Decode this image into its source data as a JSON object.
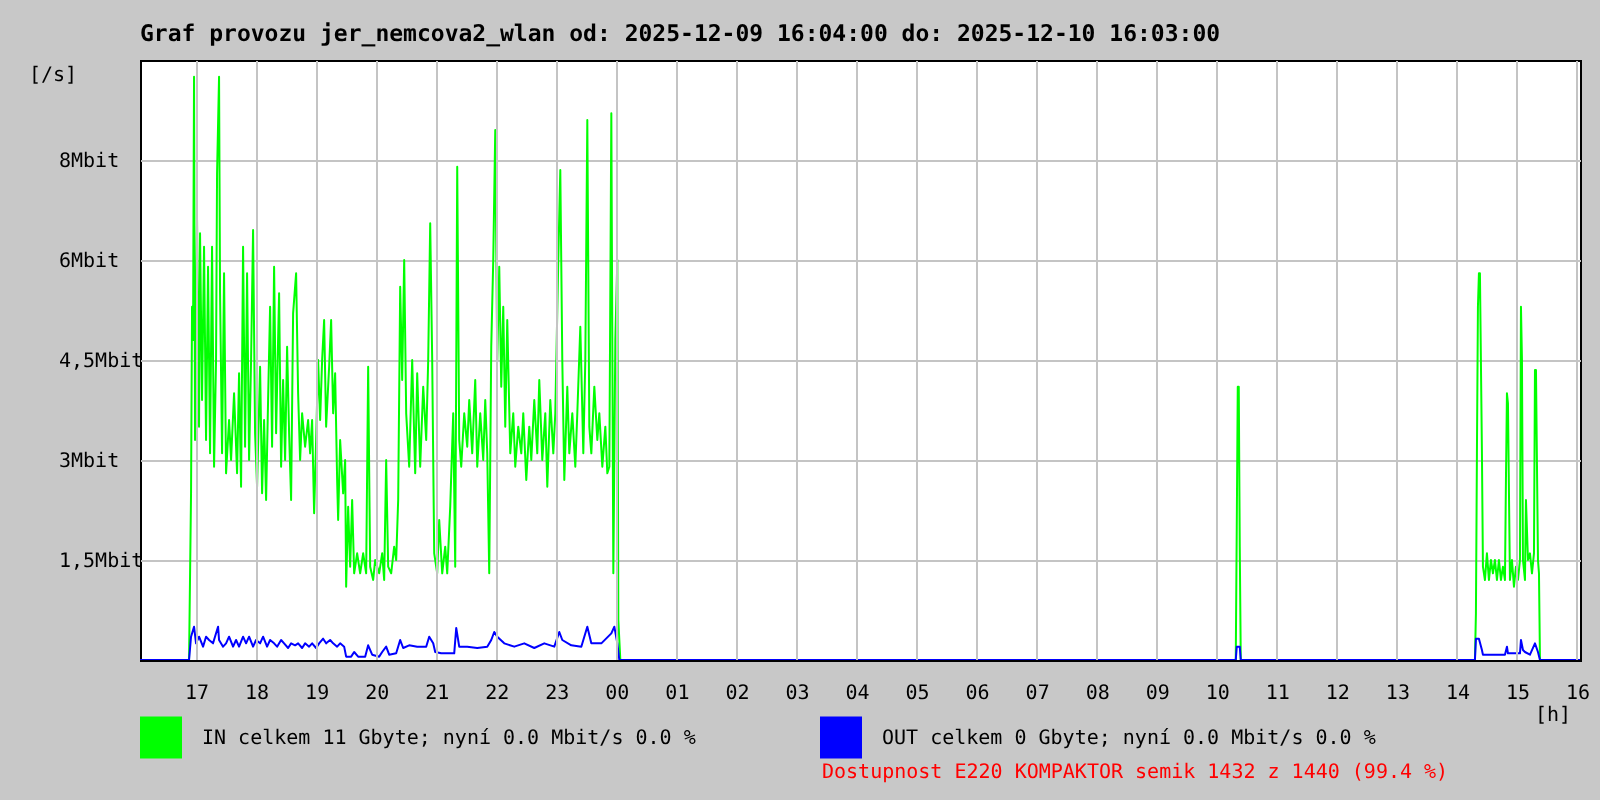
{
  "chart_data": {
    "type": "line",
    "title": "Graf provozu jer_nemcova2_wlan od: 2025-12-09 16:04:00 do: 2025-12-10 16:03:00",
    "xlabel": "[h]",
    "ylabel": "[/s]",
    "xlim": [
      "2025-12-09T16:04",
      "2025-12-10T16:03"
    ],
    "ylim": [
      0,
      9
    ],
    "xticks": [
      {
        "value": "2025-12-09T17:00",
        "label": "17"
      },
      {
        "value": "2025-12-09T18:00",
        "label": "18"
      },
      {
        "value": "2025-12-09T19:00",
        "label": "19"
      },
      {
        "value": "2025-12-09T20:00",
        "label": "20"
      },
      {
        "value": "2025-12-09T21:00",
        "label": "21"
      },
      {
        "value": "2025-12-09T22:00",
        "label": "22"
      },
      {
        "value": "2025-12-09T23:00",
        "label": "23"
      },
      {
        "value": "2025-12-10T00:00",
        "label": "00"
      },
      {
        "value": "2025-12-10T01:00",
        "label": "01"
      },
      {
        "value": "2025-12-10T02:00",
        "label": "02"
      },
      {
        "value": "2025-12-10T03:00",
        "label": "03"
      },
      {
        "value": "2025-12-10T04:00",
        "label": "04"
      },
      {
        "value": "2025-12-10T05:00",
        "label": "05"
      },
      {
        "value": "2025-12-10T06:00",
        "label": "06"
      },
      {
        "value": "2025-12-10T07:00",
        "label": "07"
      },
      {
        "value": "2025-12-10T08:00",
        "label": "08"
      },
      {
        "value": "2025-12-10T09:00",
        "label": "09"
      },
      {
        "value": "2025-12-10T10:00",
        "label": "10"
      },
      {
        "value": "2025-12-10T11:00",
        "label": "11"
      },
      {
        "value": "2025-12-10T12:00",
        "label": "12"
      },
      {
        "value": "2025-12-10T13:00",
        "label": "13"
      },
      {
        "value": "2025-12-10T14:00",
        "label": "14"
      },
      {
        "value": "2025-12-10T15:00",
        "label": "15"
      },
      {
        "value": "2025-12-10T16:00",
        "label": "16"
      }
    ],
    "yticks": [
      {
        "value": 1.5,
        "label": "1,5Mbit"
      },
      {
        "value": 3,
        "label": "3Mbit"
      },
      {
        "value": 4.5,
        "label": "4,5Mbit"
      },
      {
        "value": 6,
        "label": "6Mbit"
      },
      {
        "value": 7.5,
        "label": "8Mbit"
      }
    ],
    "grid": true,
    "legend": "bottom",
    "annotations": [
      "Dostupnost E220 KOMPAKTOR semik 1432 z 1440 (99.4 %)"
    ],
    "series": [
      {
        "name": "IN celkem 11 Gbyte; nyní 0.0 Mbit/s 0.0 %",
        "color": "#00ff00",
        "x": [
          "2025-12-09T16:04",
          "2025-12-09T16:53",
          "2025-12-09T16:55",
          "2025-12-09T16:56",
          "2025-12-09T16:57",
          "2025-12-09T16:58",
          "2025-12-09T16:59",
          "2025-12-09T17:01",
          "2025-12-09T17:03",
          "2025-12-09T17:04",
          "2025-12-09T17:06",
          "2025-12-09T17:08",
          "2025-12-09T17:10",
          "2025-12-09T17:12",
          "2025-12-09T17:14",
          "2025-12-09T17:16",
          "2025-12-09T17:18",
          "2025-12-09T17:20",
          "2025-12-09T17:21",
          "2025-12-09T17:23",
          "2025-12-09T17:24",
          "2025-12-09T17:26",
          "2025-12-09T17:28",
          "2025-12-09T17:30",
          "2025-12-09T17:33",
          "2025-12-09T17:35",
          "2025-12-09T17:38",
          "2025-12-09T17:41",
          "2025-12-09T17:43",
          "2025-12-09T17:45",
          "2025-12-09T17:47",
          "2025-12-09T17:49",
          "2025-12-09T17:51",
          "2025-12-09T17:53",
          "2025-12-09T17:55",
          "2025-12-09T17:57",
          "2025-12-09T17:59",
          "2025-12-09T18:01",
          "2025-12-09T18:04",
          "2025-12-09T18:06",
          "2025-12-09T18:08",
          "2025-12-09T18:10",
          "2025-12-09T18:12",
          "2025-12-09T18:14",
          "2025-12-09T18:16",
          "2025-12-09T18:18",
          "2025-12-09T18:20",
          "2025-12-09T18:23",
          "2025-12-09T18:25",
          "2025-12-09T18:27",
          "2025-12-09T18:29",
          "2025-12-09T18:31",
          "2025-12-09T18:33",
          "2025-12-09T18:35",
          "2025-12-09T18:37",
          "2025-12-09T18:40",
          "2025-12-09T18:42",
          "2025-12-09T18:44",
          "2025-12-09T18:46",
          "2025-12-09T18:49",
          "2025-12-09T18:52",
          "2025-12-09T18:54",
          "2025-12-09T18:56",
          "2025-12-09T18:58",
          "2025-12-09T19:00",
          "2025-12-09T19:02",
          "2025-12-09T19:04",
          "2025-12-09T19:06",
          "2025-12-09T19:08",
          "2025-12-09T19:10",
          "2025-12-09T19:13",
          "2025-12-09T19:15",
          "2025-12-09T19:17",
          "2025-12-09T19:19",
          "2025-12-09T19:21",
          "2025-12-09T19:22",
          "2025-12-09T19:24",
          "2025-12-09T19:27",
          "2025-12-09T19:29",
          "2025-12-09T19:30",
          "2025-12-09T19:32",
          "2025-12-09T19:34",
          "2025-12-09T19:36",
          "2025-12-09T19:38",
          "2025-12-09T19:41",
          "2025-12-09T19:44",
          "2025-12-09T19:47",
          "2025-12-09T19:50",
          "2025-12-09T19:52",
          "2025-12-09T19:54",
          "2025-12-09T19:57",
          "2025-12-09T19:59",
          "2025-12-09T20:03",
          "2025-12-09T20:06",
          "2025-12-09T20:08",
          "2025-12-09T20:10",
          "2025-12-09T20:12",
          "2025-12-09T20:15",
          "2025-12-09T20:18",
          "2025-12-09T20:20",
          "2025-12-09T20:22",
          "2025-12-09T20:24",
          "2025-12-09T20:26",
          "2025-12-09T20:28",
          "2025-12-09T20:30",
          "2025-12-09T20:33",
          "2025-12-09T20:36",
          "2025-12-09T20:39",
          "2025-12-09T20:41",
          "2025-12-09T20:44",
          "2025-12-09T20:47",
          "2025-12-09T20:50",
          "2025-12-09T20:52",
          "2025-12-09T20:54",
          "2025-12-09T20:56",
          "2025-12-09T20:58",
          "2025-12-09T21:01",
          "2025-12-09T21:03",
          "2025-12-09T21:06",
          "2025-12-09T21:09",
          "2025-12-09T21:11",
          "2025-12-09T21:14",
          "2025-12-09T21:17",
          "2025-12-09T21:19",
          "2025-12-09T21:21",
          "2025-12-09T21:23",
          "2025-12-09T21:25",
          "2025-12-09T21:28",
          "2025-12-09T21:31",
          "2025-12-09T21:33",
          "2025-12-09T21:36",
          "2025-12-09T21:39",
          "2025-12-09T21:41",
          "2025-12-09T21:44",
          "2025-12-09T21:47",
          "2025-12-09T21:49",
          "2025-12-09T21:51",
          "2025-12-09T21:53",
          "2025-12-09T21:55",
          "2025-12-09T21:57",
          "2025-12-09T21:59",
          "2025-12-09T22:01",
          "2025-12-09T22:03",
          "2025-12-09T22:05",
          "2025-12-09T22:07",
          "2025-12-09T22:09",
          "2025-12-09T22:11",
          "2025-12-09T22:14",
          "2025-12-09T22:17",
          "2025-12-09T22:19",
          "2025-12-09T22:22",
          "2025-12-09T22:25",
          "2025-12-09T22:27",
          "2025-12-09T22:30",
          "2025-12-09T22:33",
          "2025-12-09T22:35",
          "2025-12-09T22:38",
          "2025-12-09T22:41",
          "2025-12-09T22:43",
          "2025-12-09T22:46",
          "2025-12-09T22:49",
          "2025-12-09T22:51",
          "2025-12-09T22:54",
          "2025-12-09T22:57",
          "2025-12-09T22:59",
          "2025-12-09T23:02",
          "2025-12-09T23:04",
          "2025-12-09T23:06",
          "2025-12-09T23:08",
          "2025-12-09T23:11",
          "2025-12-09T23:13",
          "2025-12-09T23:16",
          "2025-12-09T23:19",
          "2025-12-09T23:21",
          "2025-12-09T23:24",
          "2025-12-09T23:27",
          "2025-12-09T23:29",
          "2025-12-09T23:31",
          "2025-12-09T23:33",
          "2025-12-09T23:35",
          "2025-12-09T23:38",
          "2025-12-09T23:41",
          "2025-12-09T23:43",
          "2025-12-09T23:46",
          "2025-12-09T23:49",
          "2025-12-09T23:51",
          "2025-12-09T23:53",
          "2025-12-09T23:55",
          "2025-12-09T23:57",
          "2025-12-09T23:59",
          "2025-12-10T00:01",
          "2025-12-10T00:02",
          "2025-12-10T00:04",
          "2025-12-10T10:19",
          "2025-12-10T10:20",
          "2025-12-10T10:21",
          "2025-12-10T10:22",
          "2025-12-10T10:23",
          "2025-12-10T10:24",
          "2025-12-10T14:18",
          "2025-12-10T14:19",
          "2025-12-10T14:20",
          "2025-12-10T14:21",
          "2025-12-10T14:22",
          "2025-12-10T14:23",
          "2025-12-10T14:25",
          "2025-12-10T14:26",
          "2025-12-10T14:28",
          "2025-12-10T14:30",
          "2025-12-10T14:32",
          "2025-12-10T14:34",
          "2025-12-10T14:36",
          "2025-12-10T14:38",
          "2025-12-10T14:40",
          "2025-12-10T14:42",
          "2025-12-10T14:44",
          "2025-12-10T14:46",
          "2025-12-10T14:48",
          "2025-12-10T14:49",
          "2025-12-10T14:50",
          "2025-12-10T14:51",
          "2025-12-10T14:53",
          "2025-12-10T14:55",
          "2025-12-10T14:57",
          "2025-12-10T14:59",
          "2025-12-10T15:01",
          "2025-12-10T15:03",
          "2025-12-10T15:04",
          "2025-12-10T15:05",
          "2025-12-10T15:06",
          "2025-12-10T15:08",
          "2025-12-10T15:09",
          "2025-12-10T15:11",
          "2025-12-10T15:13",
          "2025-12-10T15:15",
          "2025-12-10T15:17",
          "2025-12-10T15:18",
          "2025-12-10T15:19",
          "2025-12-10T15:21",
          "2025-12-10T15:22",
          "2025-12-10T15:23",
          "2025-12-10T16:03"
        ],
        "values": [
          0,
          0,
          2.5,
          5.3,
          4.8,
          8.75,
          3.3,
          6.6,
          3.5,
          6.4,
          3.9,
          6.2,
          3.3,
          5.9,
          3.1,
          6.2,
          2.9,
          4.5,
          7.3,
          8.75,
          5.5,
          3.1,
          5.8,
          2.8,
          3.6,
          3.0,
          4.0,
          2.8,
          4.3,
          2.6,
          6.2,
          3.2,
          5.8,
          3.0,
          4.5,
          6.45,
          3.4,
          2.6,
          4.4,
          2.5,
          3.6,
          2.4,
          3.9,
          5.3,
          3.2,
          5.9,
          3.4,
          5.5,
          2.9,
          4.2,
          3.0,
          4.7,
          3.4,
          2.4,
          5.2,
          5.8,
          4.0,
          3.0,
          3.7,
          3.2,
          3.6,
          3.1,
          3.6,
          2.2,
          3.3,
          4.5,
          3.6,
          4.5,
          5.1,
          3.5,
          4.4,
          5.1,
          3.7,
          4.3,
          2.7,
          2.1,
          3.3,
          2.5,
          3.0,
          1.1,
          2.3,
          1.4,
          2.4,
          1.3,
          1.6,
          1.3,
          1.6,
          1.3,
          4.4,
          1.4,
          1.2,
          1.5,
          1.3,
          1.6,
          1.2,
          3.0,
          1.4,
          1.3,
          1.7,
          1.5,
          2.4,
          5.6,
          4.2,
          6.0,
          3.7,
          2.9,
          4.5,
          2.8,
          4.3,
          2.9,
          4.1,
          3.3,
          4.5,
          6.55,
          4.5,
          1.6,
          1.3,
          2.1,
          1.3,
          1.7,
          1.3,
          2.3,
          3.7,
          1.4,
          7.4,
          3.3,
          2.9,
          3.7,
          3.2,
          3.9,
          3.1,
          4.2,
          2.9,
          3.7,
          3.0,
          3.9,
          3.1,
          1.3,
          4.7,
          6.0,
          7.95,
          4.5,
          5.9,
          4.1,
          5.3,
          3.5,
          5.1,
          3.1,
          3.7,
          2.9,
          3.5,
          3.1,
          3.7,
          2.7,
          3.5,
          3.0,
          3.9,
          3.1,
          4.2,
          3.0,
          3.7,
          2.6,
          3.9,
          3.1,
          3.7,
          6.0,
          7.35,
          4.5,
          2.7,
          4.1,
          3.1,
          3.7,
          2.9,
          3.7,
          5.0,
          3.1,
          4.5,
          8.1,
          3.5,
          3.1,
          4.1,
          3.3,
          3.7,
          2.9,
          3.5,
          2.8,
          2.9,
          8.2,
          1.3,
          4.8,
          6.0,
          0.6,
          0,
          0,
          2.0,
          4.1,
          4.1,
          1.7,
          0,
          0,
          0.7,
          3.1,
          5.3,
          5.8,
          5.8,
          3.1,
          1.4,
          1.2,
          1.6,
          1.2,
          1.5,
          1.3,
          1.5,
          1.2,
          1.5,
          1.2,
          1.4,
          1.2,
          2.7,
          4.0,
          3.85,
          1.2,
          1.5,
          1.1,
          1.4,
          1.2,
          1.5,
          5.3,
          4.5,
          1.5,
          1.2,
          2.4,
          1.5,
          1.6,
          1.3,
          1.6,
          4.35,
          4.35,
          1.5,
          1.3,
          0,
          0
        ]
      },
      {
        "name": "OUT celkem 0 Gbyte; nyní 0.0 Mbit/s 0.0 %",
        "color": "#0000ff",
        "x": [
          "2025-12-09T16:04",
          "2025-12-09T16:53",
          "2025-12-09T16:55",
          "2025-12-09T16:58",
          "2025-12-09T17:00",
          "2025-12-09T17:03",
          "2025-12-09T17:07",
          "2025-12-09T17:10",
          "2025-12-09T17:13",
          "2025-12-09T17:17",
          "2025-12-09T17:20",
          "2025-12-09T17:22",
          "2025-12-09T17:23",
          "2025-12-09T17:27",
          "2025-12-09T17:30",
          "2025-12-09T17:33",
          "2025-12-09T17:37",
          "2025-12-09T17:40",
          "2025-12-09T17:43",
          "2025-12-09T17:47",
          "2025-12-09T17:50",
          "2025-12-09T17:53",
          "2025-12-09T17:57",
          "2025-12-09T18:00",
          "2025-12-09T18:04",
          "2025-12-09T18:07",
          "2025-12-09T18:11",
          "2025-12-09T18:14",
          "2025-12-09T18:18",
          "2025-12-09T18:21",
          "2025-12-09T18:25",
          "2025-12-09T18:28",
          "2025-12-09T18:32",
          "2025-12-09T18:35",
          "2025-12-09T18:39",
          "2025-12-09T18:42",
          "2025-12-09T18:46",
          "2025-12-09T18:49",
          "2025-12-09T18:53",
          "2025-12-09T18:56",
          "2025-12-09T19:00",
          "2025-12-09T19:03",
          "2025-12-09T19:07",
          "2025-12-09T19:10",
          "2025-12-09T19:14",
          "2025-12-09T19:17",
          "2025-12-09T19:21",
          "2025-12-09T19:24",
          "2025-12-09T19:28",
          "2025-12-09T19:30",
          "2025-12-09T19:35",
          "2025-12-09T19:38",
          "2025-12-09T19:42",
          "2025-12-09T19:49",
          "2025-12-09T19:52",
          "2025-12-09T19:56",
          "2025-12-09T20:03",
          "2025-12-09T20:06",
          "2025-12-09T20:10",
          "2025-12-09T20:13",
          "2025-12-09T20:20",
          "2025-12-09T20:24",
          "2025-12-09T20:27",
          "2025-12-09T20:33",
          "2025-12-09T20:41",
          "2025-12-09T20:50",
          "2025-12-09T20:53",
          "2025-12-09T20:57",
          "2025-12-09T20:59",
          "2025-12-09T21:05",
          "2025-12-09T21:18",
          "2025-12-09T21:20",
          "2025-12-09T21:23",
          "2025-12-09T21:31",
          "2025-12-09T21:41",
          "2025-12-09T21:51",
          "2025-12-09T21:55",
          "2025-12-09T21:58",
          "2025-12-09T22:01",
          "2025-12-09T22:08",
          "2025-12-09T22:18",
          "2025-12-09T22:28",
          "2025-12-09T22:38",
          "2025-12-09T22:48",
          "2025-12-09T22:58",
          "2025-12-09T23:03",
          "2025-12-09T23:06",
          "2025-12-09T23:15",
          "2025-12-09T23:25",
          "2025-12-09T23:28",
          "2025-12-09T23:31",
          "2025-12-09T23:35",
          "2025-12-09T23:45",
          "2025-12-09T23:55",
          "2025-12-09T23:58",
          "2025-12-10T00:01",
          "2025-12-10T00:03",
          "2025-12-10T10:19",
          "2025-12-10T10:20",
          "2025-12-10T10:23",
          "2025-12-10T10:24",
          "2025-12-10T14:18",
          "2025-12-10T14:19",
          "2025-12-10T14:22",
          "2025-12-10T14:25",
          "2025-12-10T14:26",
          "2025-12-10T14:48",
          "2025-12-10T14:50",
          "2025-12-10T14:51",
          "2025-12-10T15:03",
          "2025-12-10T15:04",
          "2025-12-10T15:06",
          "2025-12-10T15:08",
          "2025-12-10T15:13",
          "2025-12-10T15:18",
          "2025-12-10T15:21",
          "2025-12-10T15:23",
          "2025-12-10T16:03"
        ],
        "values": [
          0,
          0,
          0.35,
          0.5,
          0.25,
          0.35,
          0.2,
          0.35,
          0.3,
          0.25,
          0.4,
          0.5,
          0.3,
          0.2,
          0.25,
          0.35,
          0.2,
          0.3,
          0.2,
          0.35,
          0.25,
          0.35,
          0.2,
          0.3,
          0.25,
          0.35,
          0.2,
          0.3,
          0.25,
          0.2,
          0.3,
          0.25,
          0.18,
          0.25,
          0.22,
          0.25,
          0.18,
          0.25,
          0.2,
          0.25,
          0.18,
          0.25,
          0.32,
          0.25,
          0.3,
          0.25,
          0.2,
          0.25,
          0.2,
          0.05,
          0.05,
          0.12,
          0.05,
          0.05,
          0.22,
          0.08,
          0.05,
          0.12,
          0.2,
          0.08,
          0.1,
          0.3,
          0.18,
          0.22,
          0.2,
          0.2,
          0.35,
          0.25,
          0.12,
          0.1,
          0.1,
          0.48,
          0.2,
          0.2,
          0.18,
          0.2,
          0.3,
          0.42,
          0.35,
          0.25,
          0.2,
          0.25,
          0.18,
          0.25,
          0.2,
          0.42,
          0.3,
          0.22,
          0.2,
          0.35,
          0.5,
          0.25,
          0.25,
          0.4,
          0.5,
          0.25,
          0,
          0,
          0.2,
          0.2,
          0,
          0,
          0.32,
          0.32,
          0.15,
          0.08,
          0.08,
          0.2,
          0.1,
          0.1,
          0.3,
          0.15,
          0.12,
          0.08,
          0.25,
          0.12,
          0,
          0
        ]
      }
    ]
  }
}
